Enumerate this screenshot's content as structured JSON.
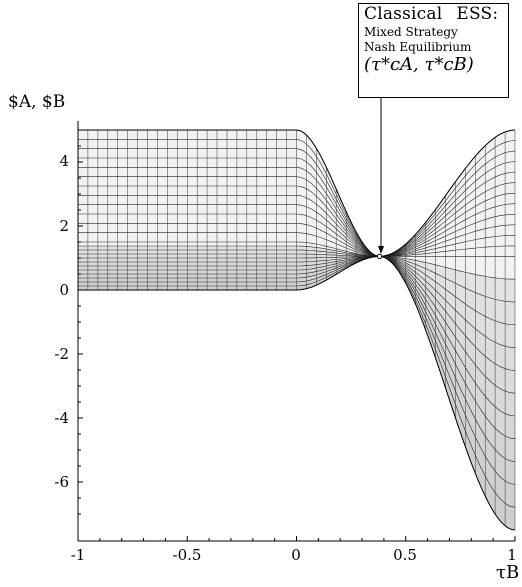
{
  "chart_data": {
    "type": "surface-wireframe",
    "title": "",
    "annotation": {
      "line1_a": "Classical",
      "line1_b": "ESS:",
      "line2": "Mixed Strategy",
      "line3": "Nash Equilibrium",
      "point_label": "(τ*cA, τ*cB)",
      "point": {
        "x": 0.38,
        "y": 1.05
      }
    },
    "ylabel": "$A, $B",
    "xlabel": "τB",
    "xlim": [
      -1,
      1
    ],
    "ylim": [
      -7.6,
      5.1
    ],
    "x_ticks": [
      "-1",
      "-0.5",
      "0",
      "0.5",
      "1"
    ],
    "y_ticks": [
      "4",
      "2",
      "0",
      "-2",
      "-4",
      "-6"
    ],
    "surfaces": [
      {
        "role": "upper",
        "flat_value": 5,
        "at_x1": 5,
        "crossing_value": 1.05,
        "mid_value": 1.5,
        "bottom_value": 0
      },
      {
        "role": "lower",
        "flat_value": 0,
        "at_x1": -7.5,
        "mid_value": 1.5
      }
    ]
  }
}
